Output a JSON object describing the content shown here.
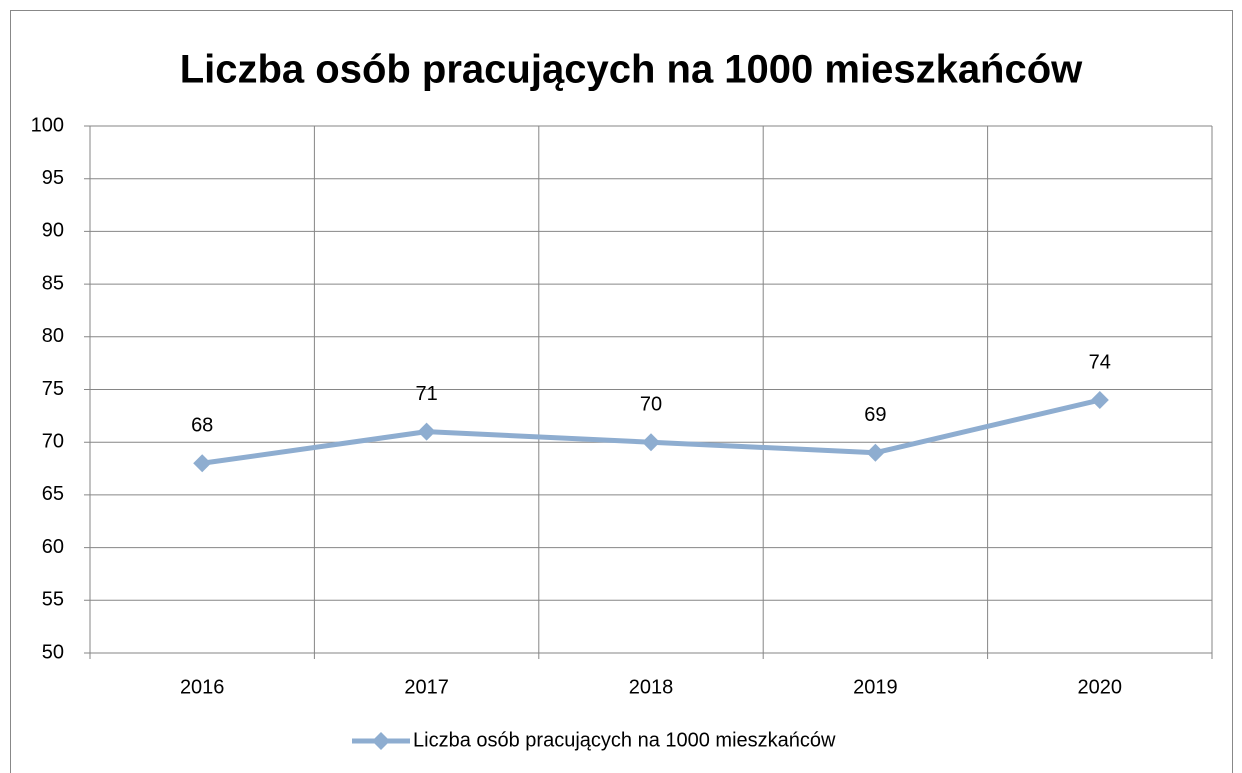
{
  "chart_data": {
    "type": "line",
    "title": "Liczba osób pracujących na 1000 mieszkańców",
    "categories": [
      "2016",
      "2017",
      "2018",
      "2019",
      "2020"
    ],
    "series": [
      {
        "name": "Liczba osób pracujących na 1000 mieszkańców",
        "color": "#8eadd0",
        "values": [
          68,
          71,
          70,
          69,
          74
        ]
      }
    ],
    "ylim": [
      50,
      100
    ],
    "yticks": [
      50,
      55,
      60,
      65,
      70,
      75,
      80,
      85,
      90,
      95,
      100
    ],
    "grid": true,
    "data_labels": true,
    "legend": "bottom"
  }
}
